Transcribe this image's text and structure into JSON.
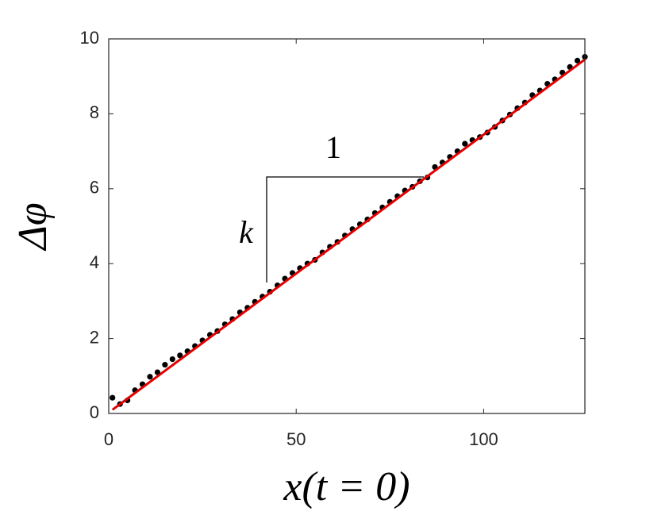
{
  "chart_data": {
    "type": "scatter",
    "xlabel": "x(t = 0)",
    "ylabel": "Δφ",
    "annotations": [
      "1",
      "k"
    ],
    "xlim": [
      0,
      127
    ],
    "xticks": [
      0,
      50,
      100
    ],
    "ylim": [
      0,
      10
    ],
    "yticks": [
      0,
      2,
      4,
      6,
      8,
      10
    ],
    "series": [
      {
        "type": "scatter",
        "color": "#000000",
        "x": [
          1,
          3,
          5,
          7,
          9,
          11,
          13,
          15,
          17,
          19,
          21,
          23,
          25,
          27,
          29,
          31,
          33,
          35,
          37,
          39,
          41,
          43,
          45,
          47,
          49,
          51,
          53,
          55,
          57,
          59,
          61,
          63,
          65,
          67,
          69,
          71,
          73,
          75,
          77,
          79,
          81,
          83,
          85,
          87,
          89,
          91,
          93,
          95,
          97,
          99,
          101,
          103,
          105,
          107,
          109,
          111,
          113,
          115,
          117,
          119,
          121,
          123,
          125,
          127
        ],
        "values": [
          0.42,
          0.25,
          0.35,
          0.62,
          0.78,
          0.98,
          1.1,
          1.3,
          1.45,
          1.55,
          1.66,
          1.8,
          1.95,
          2.1,
          2.2,
          2.38,
          2.52,
          2.7,
          2.82,
          2.98,
          3.12,
          3.25,
          3.42,
          3.6,
          3.75,
          3.88,
          4.0,
          4.1,
          4.3,
          4.45,
          4.58,
          4.75,
          4.92,
          5.05,
          5.18,
          5.35,
          5.5,
          5.65,
          5.8,
          5.95,
          6.05,
          6.2,
          6.3,
          6.58,
          6.7,
          6.85,
          7.0,
          7.2,
          7.3,
          7.38,
          7.5,
          7.65,
          7.82,
          7.98,
          8.15,
          8.3,
          8.5,
          8.62,
          8.8,
          8.92,
          9.1,
          9.25,
          9.42,
          9.52
        ]
      },
      {
        "type": "line",
        "color": "#e00000",
        "x": [
          1,
          127
        ],
        "values": [
          0.1,
          9.45
        ]
      }
    ]
  }
}
